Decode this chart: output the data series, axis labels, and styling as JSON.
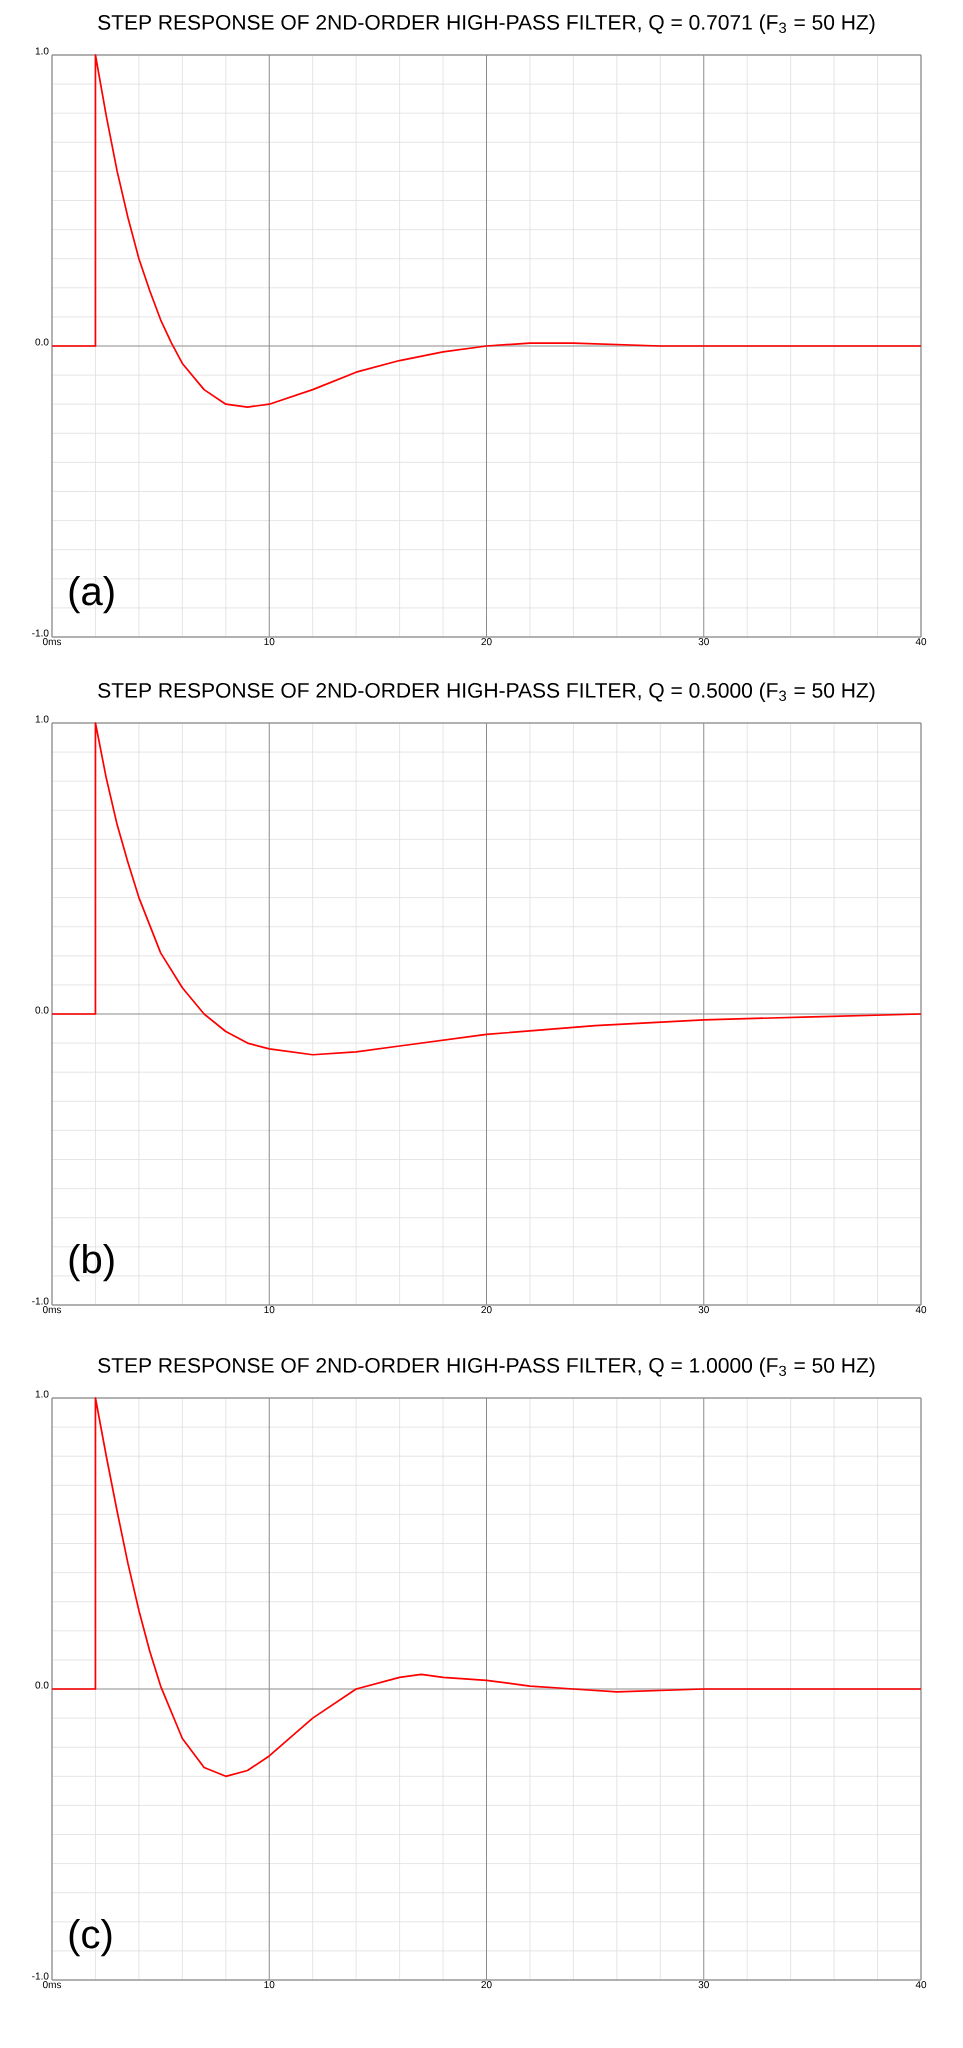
{
  "chart_data": [
    {
      "type": "line",
      "title": "STEP RESPONSE OF 2ND-ORDER HIGH-PASS FILTER, Q = 0.7071 (F$_{3}$ = 50 HZ)",
      "annotations": [
        "(a)"
      ],
      "x": [
        0,
        2,
        2,
        2.5,
        3,
        3.5,
        4,
        4.5,
        5,
        5.5,
        6,
        7,
        8,
        9,
        10,
        12,
        14,
        16,
        18,
        20,
        22,
        24,
        28,
        32,
        40
      ],
      "series": [
        {
          "color": "#ff0000",
          "values": [
            0,
            0,
            1,
            0.79,
            0.6,
            0.44,
            0.3,
            0.19,
            0.09,
            0.01,
            -0.06,
            -0.15,
            -0.2,
            -0.21,
            -0.2,
            -0.15,
            -0.09,
            -0.05,
            -0.02,
            0,
            0.01,
            0.01,
            0,
            0,
            0
          ]
        }
      ],
      "xlim": [
        0,
        40
      ],
      "ylim": [
        -1,
        1
      ],
      "grid": true,
      "xticks": [
        {
          "value": 0,
          "label": "0ms"
        },
        {
          "value": 2,
          "label": null
        },
        {
          "value": 4,
          "label": null
        },
        {
          "value": 6,
          "label": null
        },
        {
          "value": 8,
          "label": null
        },
        10,
        {
          "value": 12,
          "label": null
        },
        {
          "value": 14,
          "label": null
        },
        {
          "value": 16,
          "label": null
        },
        {
          "value": 18,
          "label": null
        },
        20,
        {
          "value": 22,
          "label": null
        },
        {
          "value": 24,
          "label": null
        },
        {
          "value": 26,
          "label": null
        },
        {
          "value": 28,
          "label": null
        },
        30,
        {
          "value": 32,
          "label": null
        },
        {
          "value": 34,
          "label": null
        },
        {
          "value": 36,
          "label": null
        },
        {
          "value": 38,
          "label": null
        },
        40
      ],
      "yticks": [
        {
          "value": -1,
          "label": "-1.0"
        },
        {
          "value": -0.9,
          "label": null
        },
        {
          "value": -0.8,
          "label": null
        },
        {
          "value": -0.7,
          "label": null
        },
        {
          "value": -0.6,
          "label": null
        },
        {
          "value": -0.5,
          "label": null
        },
        {
          "value": -0.4,
          "label": null
        },
        {
          "value": -0.3,
          "label": null
        },
        {
          "value": -0.2,
          "label": null
        },
        {
          "value": -0.1,
          "label": null
        },
        {
          "value": 0,
          "label": "0.0"
        },
        {
          "value": 0.1,
          "label": null
        },
        {
          "value": 0.2,
          "label": null
        },
        {
          "value": 0.3,
          "label": null
        },
        {
          "value": 0.4,
          "label": null
        },
        {
          "value": 0.5,
          "label": null
        },
        {
          "value": 0.6,
          "label": null
        },
        {
          "value": 0.7,
          "label": null
        },
        {
          "value": 0.8,
          "label": null
        },
        {
          "value": 0.9,
          "label": null
        },
        {
          "value": 1,
          "label": "1.0"
        }
      ]
    },
    {
      "type": "line",
      "title": "STEP RESPONSE OF 2ND-ORDER HIGH-PASS FILTER, Q = 0.5000 (F$_{3}$ = 50 HZ)",
      "annotations": [
        "(b)"
      ],
      "x": [
        0,
        2,
        2,
        2.5,
        3,
        3.5,
        4,
        5,
        6,
        7,
        8,
        9,
        10,
        12,
        14,
        16,
        20,
        25,
        30,
        35,
        40
      ],
      "series": [
        {
          "color": "#ff0000",
          "values": [
            0,
            0,
            1,
            0.81,
            0.65,
            0.52,
            0.4,
            0.21,
            0.09,
            0,
            -0.06,
            -0.1,
            -0.12,
            -0.14,
            -0.13,
            -0.11,
            -0.07,
            -0.04,
            -0.02,
            -0.01,
            0
          ]
        }
      ],
      "xlim": [
        0,
        40
      ],
      "ylim": [
        -1,
        1
      ],
      "grid": true,
      "xticks": [
        {
          "value": 0,
          "label": "0ms"
        },
        {
          "value": 2,
          "label": null
        },
        {
          "value": 4,
          "label": null
        },
        {
          "value": 6,
          "label": null
        },
        {
          "value": 8,
          "label": null
        },
        10,
        {
          "value": 12,
          "label": null
        },
        {
          "value": 14,
          "label": null
        },
        {
          "value": 16,
          "label": null
        },
        {
          "value": 18,
          "label": null
        },
        20,
        {
          "value": 22,
          "label": null
        },
        {
          "value": 24,
          "label": null
        },
        {
          "value": 26,
          "label": null
        },
        {
          "value": 28,
          "label": null
        },
        30,
        {
          "value": 32,
          "label": null
        },
        {
          "value": 34,
          "label": null
        },
        {
          "value": 36,
          "label": null
        },
        {
          "value": 38,
          "label": null
        },
        40
      ],
      "yticks": [
        {
          "value": -1,
          "label": "-1.0"
        },
        {
          "value": -0.9,
          "label": null
        },
        {
          "value": -0.8,
          "label": null
        },
        {
          "value": -0.7,
          "label": null
        },
        {
          "value": -0.6,
          "label": null
        },
        {
          "value": -0.5,
          "label": null
        },
        {
          "value": -0.4,
          "label": null
        },
        {
          "value": -0.3,
          "label": null
        },
        {
          "value": -0.2,
          "label": null
        },
        {
          "value": -0.1,
          "label": null
        },
        {
          "value": 0,
          "label": "0.0"
        },
        {
          "value": 0.1,
          "label": null
        },
        {
          "value": 0.2,
          "label": null
        },
        {
          "value": 0.3,
          "label": null
        },
        {
          "value": 0.4,
          "label": null
        },
        {
          "value": 0.5,
          "label": null
        },
        {
          "value": 0.6,
          "label": null
        },
        {
          "value": 0.7,
          "label": null
        },
        {
          "value": 0.8,
          "label": null
        },
        {
          "value": 0.9,
          "label": null
        },
        {
          "value": 1,
          "label": "1.0"
        }
      ]
    },
    {
      "type": "line",
      "title": "STEP RESPONSE OF 2ND-ORDER HIGH-PASS FILTER, Q = 1.0000 (F$_{3}$ = 50 HZ)",
      "annotations": [
        "(c)"
      ],
      "x": [
        0,
        2,
        2,
        2.5,
        3,
        3.5,
        4,
        4.5,
        5,
        6,
        7,
        8,
        9,
        10,
        12,
        14,
        16,
        17,
        18,
        20,
        22,
        24,
        26,
        30,
        40
      ],
      "series": [
        {
          "color": "#ff0000",
          "values": [
            0,
            0,
            1,
            0.8,
            0.61,
            0.43,
            0.27,
            0.13,
            0.01,
            -0.17,
            -0.27,
            -0.3,
            -0.28,
            -0.23,
            -0.1,
            0,
            0.04,
            0.05,
            0.04,
            0.03,
            0.01,
            0,
            -0.01,
            0,
            0
          ]
        }
      ],
      "xlim": [
        0,
        40
      ],
      "ylim": [
        -1,
        1
      ],
      "grid": true,
      "xticks": [
        {
          "value": 0,
          "label": "0ms"
        },
        {
          "value": 2,
          "label": null
        },
        {
          "value": 4,
          "label": null
        },
        {
          "value": 6,
          "label": null
        },
        {
          "value": 8,
          "label": null
        },
        10,
        {
          "value": 12,
          "label": null
        },
        {
          "value": 14,
          "label": null
        },
        {
          "value": 16,
          "label": null
        },
        {
          "value": 18,
          "label": null
        },
        20,
        {
          "value": 22,
          "label": null
        },
        {
          "value": 24,
          "label": null
        },
        {
          "value": 26,
          "label": null
        },
        {
          "value": 28,
          "label": null
        },
        30,
        {
          "value": 32,
          "label": null
        },
        {
          "value": 34,
          "label": null
        },
        {
          "value": 36,
          "label": null
        },
        {
          "value": 38,
          "label": null
        },
        40
      ],
      "yticks": [
        {
          "value": -1,
          "label": "-1.0"
        },
        {
          "value": -0.9,
          "label": null
        },
        {
          "value": -0.8,
          "label": null
        },
        {
          "value": -0.7,
          "label": null
        },
        {
          "value": -0.6,
          "label": null
        },
        {
          "value": -0.5,
          "label": null
        },
        {
          "value": -0.4,
          "label": null
        },
        {
          "value": -0.3,
          "label": null
        },
        {
          "value": -0.2,
          "label": null
        },
        {
          "value": -0.1,
          "label": null
        },
        {
          "value": 0,
          "label": "0.0"
        },
        {
          "value": 0.1,
          "label": null
        },
        {
          "value": 0.2,
          "label": null
        },
        {
          "value": 0.3,
          "label": null
        },
        {
          "value": 0.4,
          "label": null
        },
        {
          "value": 0.5,
          "label": null
        },
        {
          "value": 0.6,
          "label": null
        },
        {
          "value": 0.7,
          "label": null
        },
        {
          "value": 0.8,
          "label": null
        },
        {
          "value": 0.9,
          "label": null
        },
        {
          "value": 1,
          "label": "1.0"
        }
      ]
    }
  ]
}
